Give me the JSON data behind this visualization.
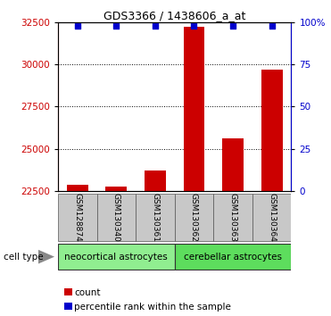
{
  "title": "GDS3366 / 1438606_a_at",
  "samples": [
    "GSM128874",
    "GSM130340",
    "GSM130361",
    "GSM130362",
    "GSM130363",
    "GSM130364"
  ],
  "counts": [
    22900,
    22750,
    23700,
    32200,
    25600,
    29700
  ],
  "percentiles": [
    98,
    98,
    98,
    98,
    98,
    98
  ],
  "ylim_left": [
    22500,
    32500
  ],
  "ylim_right": [
    0,
    100
  ],
  "yticks_left": [
    22500,
    25000,
    27500,
    30000,
    32500
  ],
  "yticks_right": [
    0,
    25,
    50,
    75,
    100
  ],
  "bar_color": "#cc0000",
  "dot_color": "#0000cc",
  "bar_width": 0.55,
  "cell_types": [
    {
      "label": "neocortical astrocytes",
      "start": 0,
      "end": 3,
      "color": "#90ee90"
    },
    {
      "label": "cerebellar astrocytes",
      "start": 3,
      "end": 6,
      "color": "#5ddd5d"
    }
  ],
  "cell_type_label": "cell type",
  "legend_count_label": "count",
  "legend_percentile_label": "percentile rank within the sample",
  "background_color": "#ffffff",
  "left_axis_color": "#cc0000",
  "right_axis_color": "#0000cc",
  "tick_area_bg": "#c8c8c8",
  "title_fontsize": 9,
  "tick_fontsize": 7.5,
  "label_fontsize": 6.5,
  "ct_fontsize": 7.5
}
